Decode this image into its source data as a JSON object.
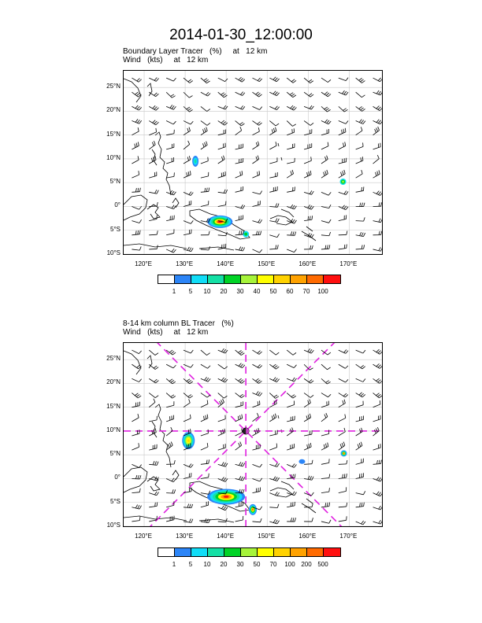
{
  "main_title": "2014-01-30_12:00:00",
  "panel1": {
    "title_line1": "Boundary Layer Tracer   (%)     at   12 km",
    "title_line2": "Wind   (kts)     at   12 km",
    "lat_labels": [
      "25°N",
      "20°N",
      "15°N",
      "10°N",
      "5°N",
      "0°",
      "5°S",
      "10°S"
    ],
    "lon_labels": [
      "120°E",
      "130°E",
      "140°E",
      "150°E",
      "160°E",
      "170°E"
    ],
    "colorbar_colors": [
      "#ffffff",
      "#2c85f7",
      "#11ddf7",
      "#14e0a5",
      "#00d326",
      "#a6f43a",
      "#ffff00",
      "#ffd200",
      "#ffa200",
      "#ff6a00",
      "#ff0f0f"
    ],
    "colorbar_labels": [
      "1",
      "5",
      "10",
      "20",
      "30",
      "40",
      "50",
      "60",
      "70",
      "100"
    ]
  },
  "panel2": {
    "title_line1": "8-14 km column BL Tracer   (%)",
    "title_line2": "Wind   (kts)     at   12 km",
    "lat_labels": [
      "25°N",
      "20°N",
      "15°N",
      "10°N",
      "5°N",
      "0°",
      "5°S",
      "10°S"
    ],
    "lon_labels": [
      "120°E",
      "130°E",
      "140°E",
      "150°E",
      "160°E",
      "170°E"
    ],
    "colorbar_colors": [
      "#ffffff",
      "#2c85f7",
      "#11ddf7",
      "#14e0a5",
      "#00d326",
      "#a6f43a",
      "#ffff00",
      "#ffd200",
      "#ffa200",
      "#ff6a00",
      "#ff0f0f"
    ],
    "colorbar_labels": [
      "1",
      "5",
      "10",
      "20",
      "30",
      "50",
      "70",
      "100",
      "200",
      "500"
    ],
    "crosshair_color": "#e020e0"
  }
}
